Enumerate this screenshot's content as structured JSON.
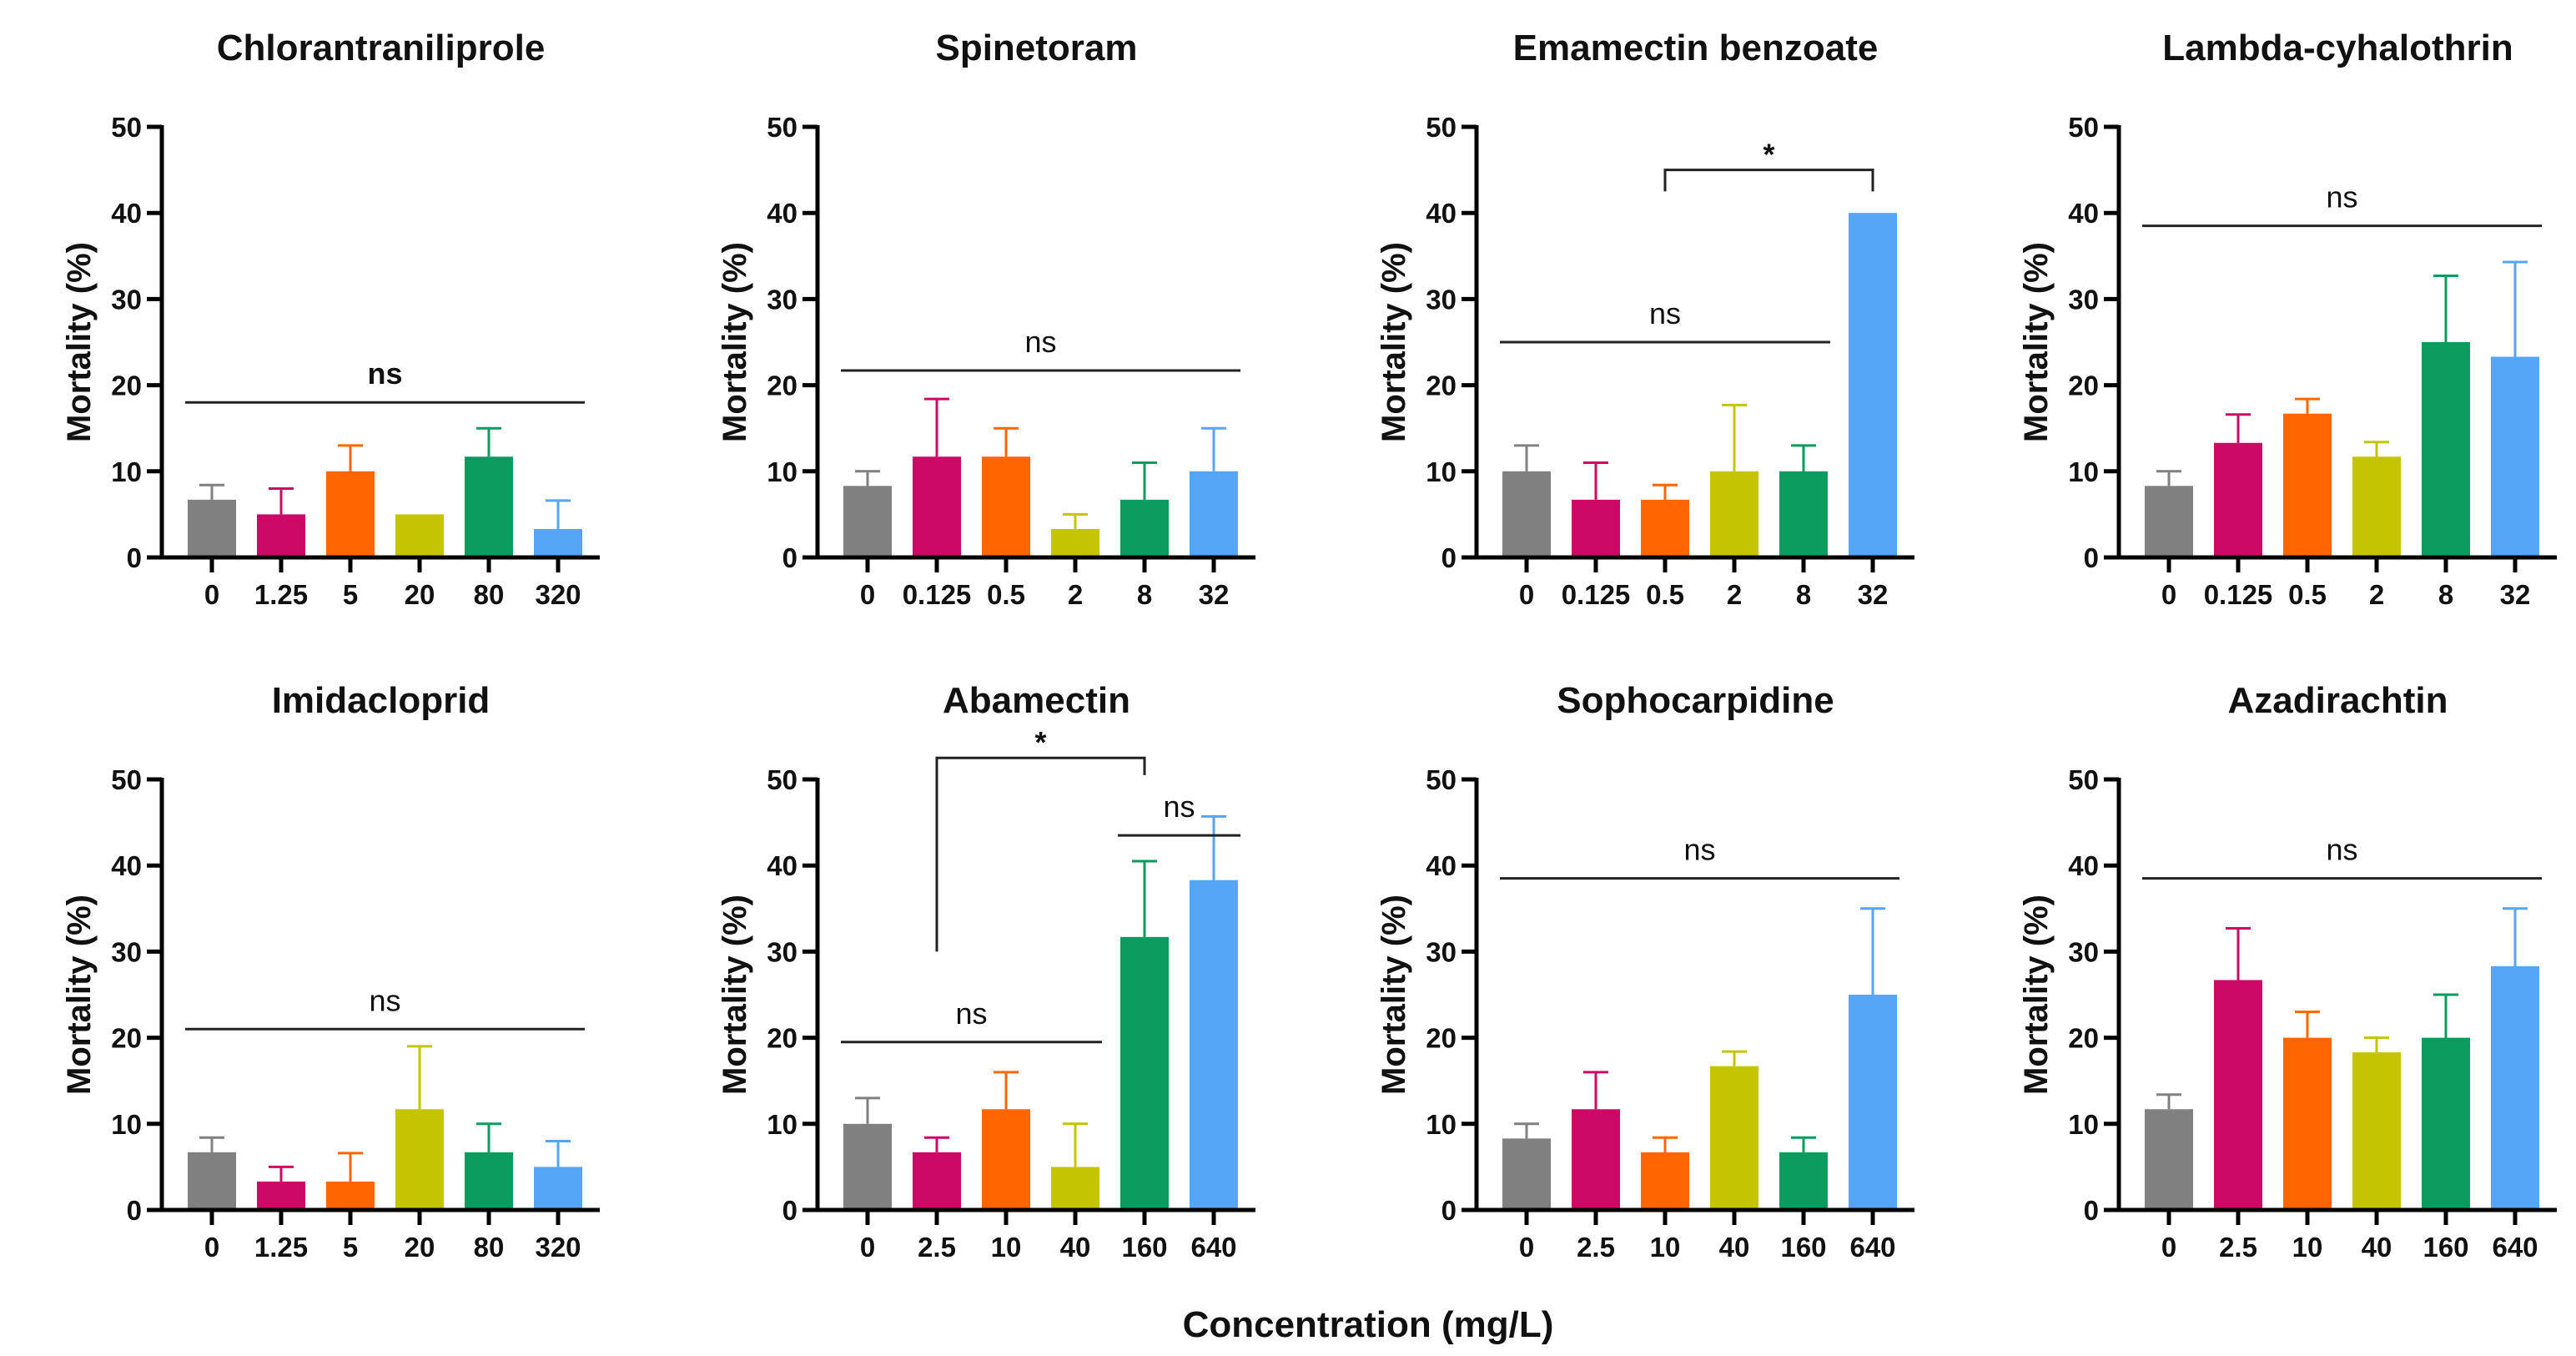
{
  "chart_data": {
    "type": "bar",
    "xlabel": "Concentration (mg/L)",
    "ylabel": "Mortality (%)",
    "ylim": [
      0,
      50
    ],
    "yticks": [
      0,
      10,
      20,
      30,
      40,
      50
    ],
    "colors": [
      "#808080",
      "#cc0a66",
      "#ff6600",
      "#c4c400",
      "#0a9b5e",
      "#55a5f7"
    ],
    "panels": [
      {
        "title": "Chlorantraniliprole",
        "categories": [
          "0",
          "1.25",
          "5",
          "20",
          "80",
          "320"
        ],
        "values": [
          6.7,
          5,
          10,
          5,
          11.7,
          3.3
        ],
        "errors": [
          1.7,
          3,
          3,
          0,
          3.3,
          3.3
        ],
        "annotations": [
          {
            "kind": "line",
            "from": 0,
            "to": 5,
            "y": 18,
            "label": "ns",
            "bold": true
          }
        ]
      },
      {
        "title": "Spinetoram",
        "categories": [
          "0",
          "0.125",
          "0.5",
          "2",
          "8",
          "32"
        ],
        "values": [
          8.3,
          11.7,
          11.7,
          3.3,
          6.7,
          10
        ],
        "errors": [
          1.7,
          6.7,
          3.3,
          1.7,
          4.3,
          5
        ],
        "annotations": [
          {
            "kind": "line",
            "from": 0,
            "to": 5,
            "y": 21.7,
            "label": "ns"
          }
        ]
      },
      {
        "title": "Emamectin benzoate",
        "categories": [
          "0",
          "0.125",
          "0.5",
          "2",
          "8",
          "32"
        ],
        "values": [
          10,
          6.7,
          6.7,
          10,
          10,
          40
        ],
        "errors": [
          3,
          4.3,
          1.7,
          7.7,
          3,
          0
        ],
        "annotations": [
          {
            "kind": "line",
            "from": 0,
            "to": 4,
            "y": 25,
            "label": "ns"
          },
          {
            "kind": "bracket",
            "from": 2,
            "to": 5,
            "y": 45,
            "left_end": 42.5,
            "right_end": 42.5,
            "label": "*"
          }
        ]
      },
      {
        "title": "Lambda-cyhalothrin",
        "categories": [
          "0",
          "0.125",
          "0.5",
          "2",
          "8",
          "32"
        ],
        "values": [
          8.3,
          13.3,
          16.7,
          11.7,
          25,
          23.3
        ],
        "errors": [
          1.7,
          3.3,
          1.7,
          1.7,
          7.7,
          11
        ],
        "annotations": [
          {
            "kind": "line",
            "from": 0,
            "to": 5,
            "y": 38.5,
            "label": "ns"
          }
        ]
      },
      {
        "title": "Imidacloprid",
        "categories": [
          "0",
          "1.25",
          "5",
          "20",
          "80",
          "320"
        ],
        "values": [
          6.7,
          3.3,
          3.3,
          11.7,
          6.7,
          5
        ],
        "errors": [
          1.7,
          1.7,
          3.3,
          7.3,
          3.3,
          3
        ],
        "annotations": [
          {
            "kind": "line",
            "from": 0,
            "to": 5,
            "y": 21,
            "label": "ns"
          }
        ]
      },
      {
        "title": "Abamectin",
        "categories": [
          "0",
          "2.5",
          "10",
          "40",
          "160",
          "640"
        ],
        "values": [
          10,
          6.7,
          11.7,
          5,
          31.7,
          38.3
        ],
        "errors": [
          3,
          1.7,
          4.3,
          5,
          8.8,
          7.4
        ],
        "annotations": [
          {
            "kind": "line",
            "from": 0,
            "to": 3,
            "y": 19.5,
            "label": "ns"
          },
          {
            "kind": "line",
            "from": 4,
            "to": 5,
            "y": 43.5,
            "label": "ns"
          },
          {
            "kind": "bracket",
            "from": 1,
            "to": 4,
            "y": 52.5,
            "left_end": 30,
            "right_end": 50.5,
            "label": "*"
          }
        ]
      },
      {
        "title": "Sophocarpidine",
        "categories": [
          "0",
          "2.5",
          "10",
          "40",
          "160",
          "640"
        ],
        "values": [
          8.3,
          11.7,
          6.7,
          16.7,
          6.7,
          25
        ],
        "errors": [
          1.7,
          4.3,
          1.7,
          1.7,
          1.7,
          10
        ],
        "annotations": [
          {
            "kind": "line",
            "from": 0,
            "to": 5,
            "y": 38.5,
            "label": "ns"
          }
        ]
      },
      {
        "title": "Azadirachtin",
        "categories": [
          "0",
          "2.5",
          "10",
          "40",
          "160",
          "640"
        ],
        "values": [
          11.7,
          26.7,
          20,
          18.3,
          20,
          28.3
        ],
        "errors": [
          1.7,
          6,
          3,
          1.7,
          5,
          6.7
        ],
        "annotations": [
          {
            "kind": "line",
            "from": 0,
            "to": 5,
            "y": 38.5,
            "label": "ns"
          }
        ]
      }
    ]
  }
}
